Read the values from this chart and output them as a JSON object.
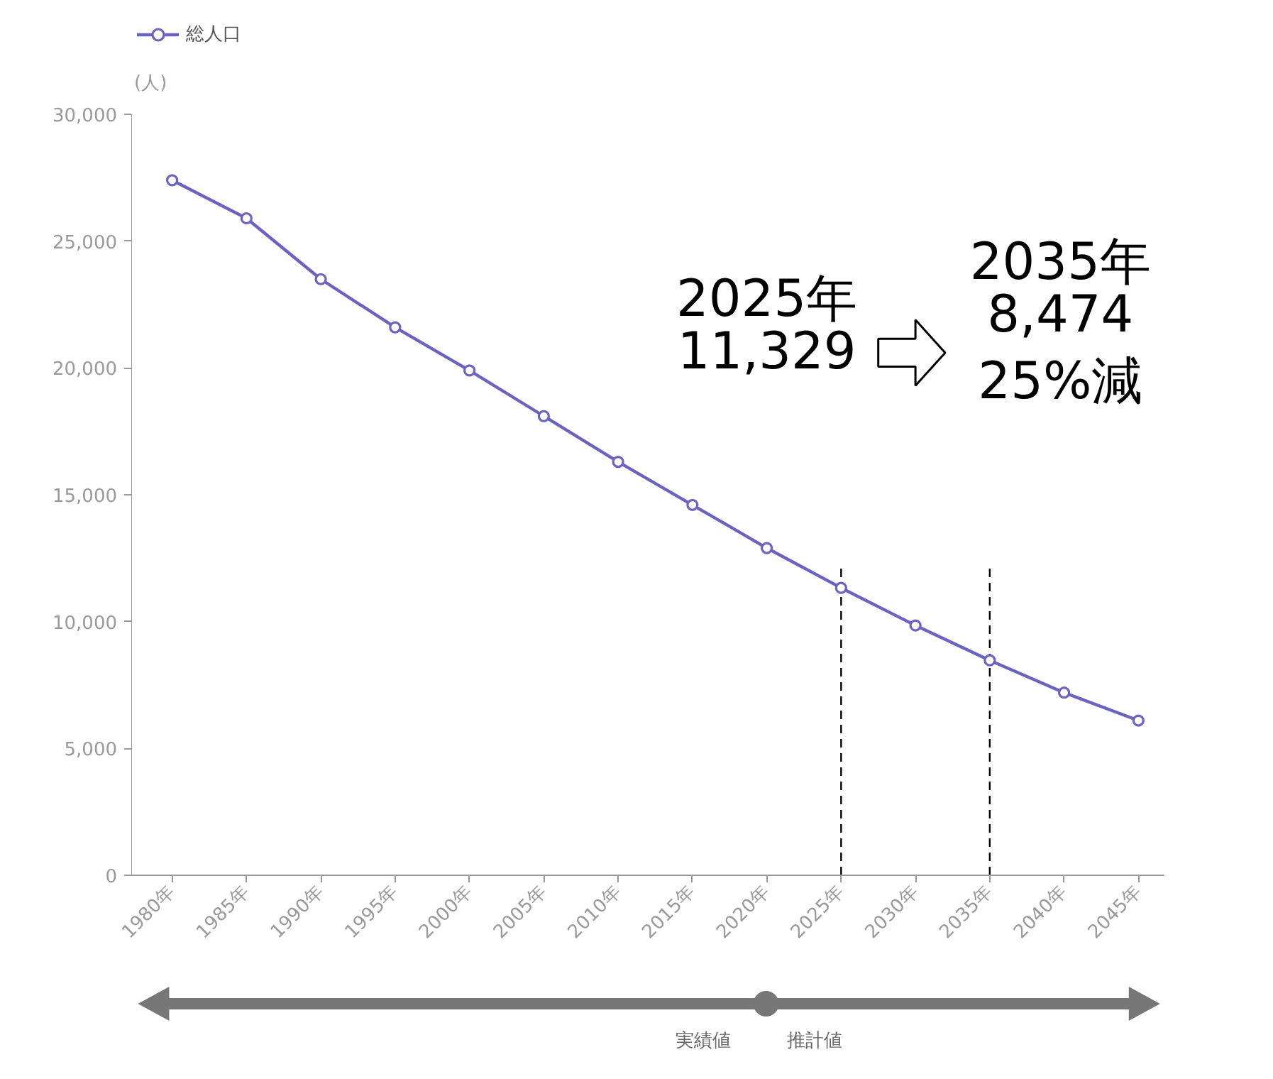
{
  "chart_data": {
    "type": "line",
    "ylabel": "(人)",
    "categories": [
      "1980年",
      "1985年",
      "1990年",
      "1995年",
      "2000年",
      "2005年",
      "2010年",
      "2015年",
      "2020年",
      "2025年",
      "2030年",
      "2035年",
      "2040年",
      "2045年"
    ],
    "series": [
      {
        "name": "総人口",
        "color": "#6b63c0",
        "values": [
          27400,
          25900,
          23500,
          21600,
          19900,
          18100,
          16300,
          14600,
          12900,
          11329,
          9850,
          8474,
          7200,
          6100
        ]
      }
    ],
    "ylim": [
      0,
      30000
    ],
    "yticks": [
      0,
      {
        "value": 5000,
        "label": "5,000"
      },
      {
        "value": 10000,
        "label": "10,000"
      },
      {
        "value": 15000,
        "label": "15,000"
      },
      {
        "value": 20000,
        "label": "20,000"
      },
      {
        "value": 25000,
        "label": "25,000"
      },
      {
        "value": 30000,
        "label": "30,000"
      }
    ],
    "ref_lines": [
      {
        "axis": "x",
        "value": "2025年",
        "color": "#000000",
        "line_style": "dashed"
      },
      {
        "axis": "x",
        "value": "2035年",
        "color": "#000000",
        "line_style": "dashed"
      }
    ],
    "annotations": [
      "2025年\n11,329",
      "2035年\n8,474\n25%減",
      "実績値",
      "推計値"
    ],
    "marker": "circle",
    "line_style": "solid",
    "grid": false,
    "legend": "top"
  }
}
